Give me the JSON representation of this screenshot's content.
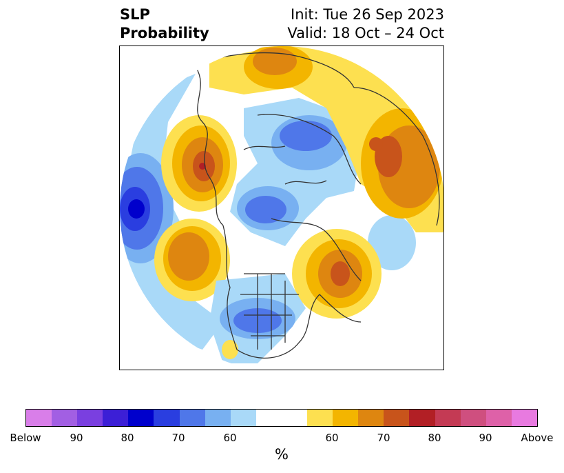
{
  "title": {
    "variable": "SLP",
    "subtitle": "Probability",
    "init": "Init: Tue 26 Sep 2023",
    "valid": "Valid: 18 Oct – 24 Oct"
  },
  "colorbar": {
    "colors": [
      "#d97ee9",
      "#a25fe3",
      "#7a3fe0",
      "#3c1fd6",
      "#0000cc",
      "#2a3ee0",
      "#4f77e9",
      "#78b0f1",
      "#a9d9f8",
      "#ffffff",
      "#ffffff",
      "#fde050",
      "#f3b500",
      "#de8610",
      "#c8541b",
      "#b21f25",
      "#c43a54",
      "#cf4f7f",
      "#de61a8",
      "#e87ae0"
    ],
    "tick_labels": [
      "Below",
      "90",
      "80",
      "70",
      "60",
      "60",
      "70",
      "80",
      "90",
      "Above"
    ],
    "unit": "%"
  }
}
